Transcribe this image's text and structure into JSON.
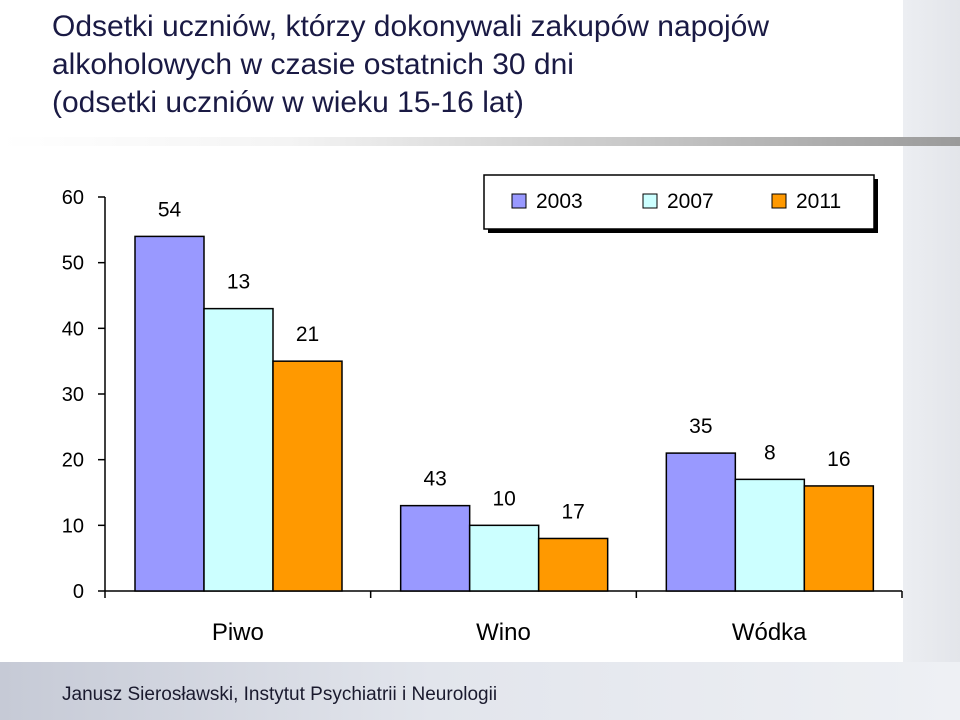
{
  "title_lines": [
    "Odsetki uczniów, którzy dokonywali zakupów napojów",
    "alkoholowych w czasie ostatnich 30 dni",
    "(odsetki uczniów w wieku 15-16 lat)"
  ],
  "footer": "Janusz Sierosławski, Instytut Psychiatrii i Neurologii",
  "chart_data": {
    "type": "bar",
    "categories": [
      "Piwo",
      "Wino",
      "Wódka"
    ],
    "series": [
      {
        "name": "2003",
        "values": [
          54,
          13,
          21
        ],
        "color": "#9999ff"
      },
      {
        "name": "2007",
        "values": [
          43,
          10,
          17
        ],
        "color": "#ccffff"
      },
      {
        "name": "2011",
        "values": [
          35,
          8,
          16
        ],
        "color": "#ff9900"
      }
    ],
    "data_labels": [
      [
        "54",
        "13",
        "21"
      ],
      [
        "43",
        "10",
        "17"
      ],
      [
        "35",
        "8",
        "16"
      ]
    ],
    "y_ticks": [
      "0",
      "10",
      "20",
      "30",
      "40",
      "50",
      "60"
    ],
    "ylim": [
      0,
      60
    ],
    "grid": false,
    "legend_position": "top-right"
  }
}
